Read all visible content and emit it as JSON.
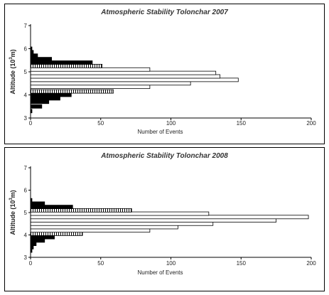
{
  "chart_data": [
    {
      "type": "bar",
      "orientation": "horizontal",
      "title": "Atmospheric Stability Tolonchar 2007",
      "xlabel": "Number of Events",
      "ylabel_main": "Altitude (10",
      "ylabel_sup": "3",
      "ylabel_end": "m)",
      "xlim": [
        0,
        200
      ],
      "ylim": [
        3,
        7
      ],
      "xticks": [
        "0",
        "50",
        "100",
        "150",
        "200"
      ],
      "yticks": [
        "3",
        "4",
        "5",
        "6",
        "7"
      ],
      "grid": false,
      "bars": [
        {
          "y": 3.3,
          "value": 1,
          "style": "black"
        },
        {
          "y": 3.5,
          "value": 8,
          "style": "black"
        },
        {
          "y": 3.7,
          "value": 13,
          "style": "black"
        },
        {
          "y": 3.85,
          "value": 21,
          "style": "black"
        },
        {
          "y": 4.0,
          "value": 29,
          "style": "black"
        },
        {
          "y": 4.15,
          "value": 59,
          "style": "hatched"
        },
        {
          "y": 4.35,
          "value": 85,
          "style": "white"
        },
        {
          "y": 4.5,
          "value": 114,
          "style": "white"
        },
        {
          "y": 4.65,
          "value": 148,
          "style": "white"
        },
        {
          "y": 4.8,
          "value": 135,
          "style": "white"
        },
        {
          "y": 4.95,
          "value": 132,
          "style": "white"
        },
        {
          "y": 5.1,
          "value": 85,
          "style": "white"
        },
        {
          "y": 5.25,
          "value": 51,
          "style": "hatched"
        },
        {
          "y": 5.4,
          "value": 44,
          "style": "black"
        },
        {
          "y": 5.55,
          "value": 15,
          "style": "black"
        },
        {
          "y": 5.7,
          "value": 5,
          "style": "black"
        },
        {
          "y": 5.85,
          "value": 2,
          "style": "black"
        },
        {
          "y": 6.0,
          "value": 1,
          "style": "black"
        }
      ]
    },
    {
      "type": "bar",
      "orientation": "horizontal",
      "title": "Atmospheric Stability Tolonchar 2008",
      "xlabel": "Number of Events",
      "ylabel_main": "Altitude (10",
      "ylabel_sup": "3",
      "ylabel_end": "m)",
      "xlim": [
        0,
        200
      ],
      "ylim": [
        3,
        7
      ],
      "xticks": [
        "0",
        "50",
        "100",
        "150",
        "200"
      ],
      "yticks": [
        "3",
        "4",
        "5",
        "6",
        "7"
      ],
      "grid": false,
      "bars": [
        {
          "y": 3.3,
          "value": 1,
          "style": "black"
        },
        {
          "y": 3.45,
          "value": 2,
          "style": "black"
        },
        {
          "y": 3.6,
          "value": 4,
          "style": "black"
        },
        {
          "y": 3.75,
          "value": 10,
          "style": "black"
        },
        {
          "y": 3.9,
          "value": 17,
          "style": "black"
        },
        {
          "y": 4.05,
          "value": 37,
          "style": "hatched"
        },
        {
          "y": 4.2,
          "value": 85,
          "style": "white"
        },
        {
          "y": 4.35,
          "value": 105,
          "style": "white"
        },
        {
          "y": 4.5,
          "value": 130,
          "style": "white"
        },
        {
          "y": 4.65,
          "value": 175,
          "style": "white"
        },
        {
          "y": 4.8,
          "value": 198,
          "style": "white"
        },
        {
          "y": 4.95,
          "value": 127,
          "style": "white"
        },
        {
          "y": 5.1,
          "value": 72,
          "style": "hatched"
        },
        {
          "y": 5.25,
          "value": 30,
          "style": "black"
        },
        {
          "y": 5.4,
          "value": 10,
          "style": "black"
        },
        {
          "y": 5.55,
          "value": 1,
          "style": "black"
        }
      ]
    }
  ]
}
